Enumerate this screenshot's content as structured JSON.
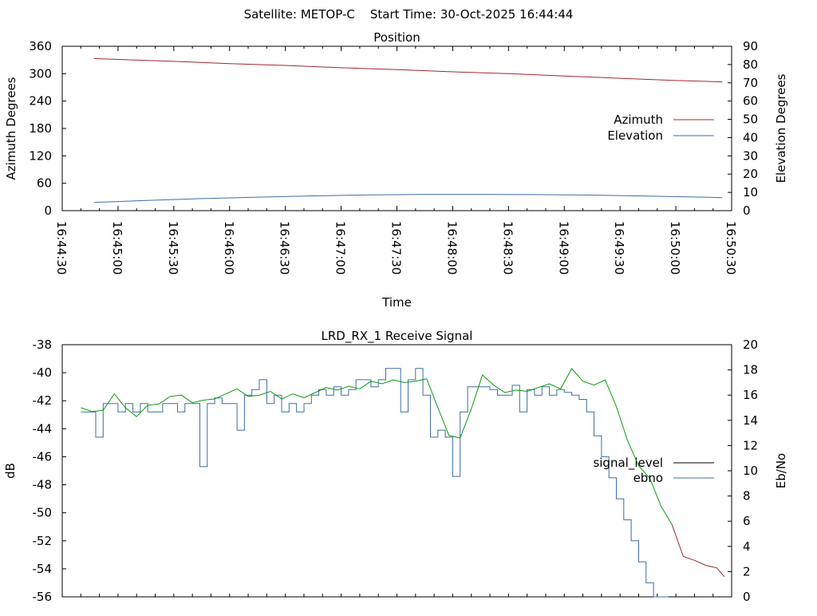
{
  "page_title": "Satellite: METOP-C    Start Time: 30-Oct-2025 16:44:44",
  "colors": {
    "azimuth": "#a0282d",
    "elevation": "#3b6ea5",
    "ebno_green": "#0a9a0a",
    "ebno_blue": "#3b6ea5",
    "ebno_red": "#a0282d",
    "signal_level": "#000000",
    "frame": "#000000"
  },
  "chart_data": [
    {
      "type": "line",
      "title": "Position",
      "xlabel": "Time",
      "ylabel": "Azimuth Degrees",
      "y2label": "Elevation Degrees",
      "xlim": [
        "16:44:30",
        "16:50:30"
      ],
      "ylim": [
        0,
        360
      ],
      "y2lim": [
        0,
        90
      ],
      "x_ticks": [
        "16:44:30",
        "16:45:00",
        "16:45:30",
        "16:46:00",
        "16:46:30",
        "16:47:00",
        "16:47:30",
        "16:48:00",
        "16:48:30",
        "16:49:00",
        "16:49:30",
        "16:50:00",
        "16:50:30"
      ],
      "y_ticks": [
        "0",
        "60",
        "120",
        "180",
        "240",
        "300",
        "360"
      ],
      "y2_ticks": [
        "0",
        "10",
        "20",
        "30",
        "40",
        "50",
        "60",
        "70",
        "80",
        "90"
      ],
      "grid": false,
      "legend_position": "right",
      "series": [
        {
          "name": "Azimuth",
          "axis": "y1",
          "x": [
            "16:44:47",
            "16:45:30",
            "16:46:00",
            "16:46:30",
            "16:47:00",
            "16:47:30",
            "16:48:00",
            "16:48:30",
            "16:49:00",
            "16:49:30",
            "16:50:00",
            "16:50:25"
          ],
          "values": [
            333,
            327,
            322,
            318,
            313,
            309,
            304,
            300,
            295,
            290,
            285,
            282
          ]
        },
        {
          "name": "Elevation",
          "axis": "y2",
          "x": [
            "16:44:47",
            "16:45:15",
            "16:45:45",
            "16:46:15",
            "16:46:45",
            "16:47:15",
            "16:47:45",
            "16:48:15",
            "16:48:45",
            "16:49:15",
            "16:49:45",
            "16:50:15",
            "16:50:25"
          ],
          "values": [
            4.5,
            5.6,
            6.6,
            7.4,
            8.1,
            8.6,
            8.9,
            8.9,
            8.8,
            8.5,
            8.0,
            7.4,
            7.1
          ]
        }
      ]
    },
    {
      "type": "line",
      "title": "LRD_RX_1 Receive Signal",
      "xlabel": "",
      "ylabel": "dB",
      "y2label": "Eb/No",
      "xlim": [
        "16:44:30",
        "16:50:30"
      ],
      "ylim": [
        -56,
        -38
      ],
      "y2lim": [
        0,
        20
      ],
      "y_ticks": [
        "-38",
        "-40",
        "-42",
        "-44",
        "-46",
        "-48",
        "-50",
        "-52",
        "-54",
        "-56"
      ],
      "y2_ticks": [
        "20",
        "18",
        "16",
        "14",
        "12",
        "10",
        "8",
        "6",
        "4",
        "2",
        "0"
      ],
      "grid": false,
      "legend_position": "right",
      "series": [
        {
          "name": "signal_level",
          "axis": "y1",
          "x": [
            "16:44:40",
            "16:44:44",
            "16:44:48",
            "16:44:52",
            "16:44:56",
            "16:45:00",
            "16:45:04",
            "16:45:08",
            "16:45:12",
            "16:45:16",
            "16:45:20",
            "16:45:24",
            "16:45:28",
            "16:45:32",
            "16:45:36",
            "16:45:40",
            "16:45:44",
            "16:45:48",
            "16:45:52",
            "16:45:56",
            "16:46:00",
            "16:46:04",
            "16:46:08",
            "16:46:12",
            "16:46:16",
            "16:46:20",
            "16:46:24",
            "16:46:28",
            "16:46:32",
            "16:46:36",
            "16:46:40",
            "16:46:44",
            "16:46:48",
            "16:46:52",
            "16:46:56",
            "16:47:00",
            "16:47:04",
            "16:47:08",
            "16:47:12",
            "16:47:16",
            "16:47:20",
            "16:47:24",
            "16:47:28",
            "16:47:32",
            "16:47:36",
            "16:47:40",
            "16:47:44",
            "16:47:48",
            "16:47:52",
            "16:47:56",
            "16:48:00",
            "16:48:04",
            "16:48:08",
            "16:48:12",
            "16:48:16",
            "16:48:20",
            "16:48:24",
            "16:48:28",
            "16:48:32",
            "16:48:36",
            "16:48:40",
            "16:48:44",
            "16:48:48",
            "16:48:52",
            "16:48:56",
            "16:49:00",
            "16:49:04",
            "16:49:08",
            "16:49:12",
            "16:49:16",
            "16:49:20",
            "16:49:24",
            "16:49:28",
            "16:49:32",
            "16:49:36",
            "16:49:40",
            "16:49:44",
            "16:49:48",
            "16:49:52",
            "16:49:56"
          ],
          "values": [
            -42.8,
            -42.8,
            -44.6,
            -42.2,
            -42.2,
            -42.8,
            -42.2,
            -42.8,
            -42.2,
            -42.8,
            -42.8,
            -42.2,
            -42.2,
            -42.8,
            -42.2,
            -42.2,
            -46.7,
            -42.2,
            -41.8,
            -42.2,
            -42.2,
            -44.1,
            -41.6,
            -41.2,
            -40.5,
            -42.2,
            -41.6,
            -42.8,
            -42.2,
            -42.8,
            -42.2,
            -41.6,
            -41.2,
            -41.6,
            -41.0,
            -41.6,
            -41.2,
            -40.5,
            -40.5,
            -41.0,
            -40.5,
            -39.7,
            -39.7,
            -42.8,
            -40.5,
            -39.7,
            -41.6,
            -44.6,
            -44.1,
            -44.6,
            -47.4,
            -42.8,
            -41.0,
            -41.0,
            -41.0,
            -41.2,
            -41.6,
            -41.6,
            -40.9,
            -42.8,
            -41.2,
            -41.6,
            -41.0,
            -41.6,
            -41.2,
            -41.4,
            -41.6,
            -41.9,
            -42.8,
            -44.5,
            -46.0,
            -47.5,
            -49.0,
            -50.5,
            -52.0,
            -53.5,
            -55.0,
            -56.0,
            -56.0,
            -56.0
          ]
        },
        {
          "name": "ebno",
          "axis": "y2",
          "x": [
            "16:44:40",
            "16:44:46",
            "16:44:52",
            "16:44:58",
            "16:45:04",
            "16:45:10",
            "16:45:16",
            "16:45:22",
            "16:45:28",
            "16:45:34",
            "16:45:40",
            "16:45:46",
            "16:45:52",
            "16:45:58",
            "16:46:04",
            "16:46:10",
            "16:46:16",
            "16:46:22",
            "16:46:28",
            "16:46:34",
            "16:46:40",
            "16:46:46",
            "16:46:52",
            "16:46:58",
            "16:47:04",
            "16:47:10",
            "16:47:16",
            "16:47:22",
            "16:47:28",
            "16:47:34",
            "16:47:40",
            "16:47:46",
            "16:47:52",
            "16:47:58",
            "16:48:04",
            "16:48:10",
            "16:48:16",
            "16:48:22",
            "16:48:28",
            "16:48:34",
            "16:48:40",
            "16:48:46",
            "16:48:52",
            "16:48:58",
            "16:49:04",
            "16:49:10",
            "16:49:16",
            "16:49:22",
            "16:49:28",
            "16:49:34",
            "16:49:40",
            "16:49:46",
            "16:49:52",
            "16:49:58",
            "16:50:04",
            "16:50:10",
            "16:50:16",
            "16:50:22",
            "16:50:26"
          ],
          "values": [
            15.0,
            14.7,
            14.8,
            16.1,
            15.0,
            14.3,
            15.2,
            15.3,
            15.9,
            16.0,
            15.4,
            15.6,
            15.7,
            16.1,
            16.5,
            15.9,
            16.0,
            16.3,
            15.7,
            16.1,
            15.8,
            16.2,
            16.6,
            16.4,
            16.7,
            16.5,
            17.1,
            16.9,
            17.2,
            17.0,
            17.1,
            17.3,
            15.0,
            12.8,
            12.6,
            14.9,
            17.6,
            16.8,
            16.2,
            16.4,
            16.3,
            16.6,
            16.9,
            16.5,
            18.1,
            17.1,
            16.8,
            17.2,
            15.1,
            12.4,
            10.4,
            9.4,
            7.2,
            5.7,
            3.2,
            2.9,
            2.5,
            2.3,
            1.6
          ]
        }
      ]
    }
  ]
}
